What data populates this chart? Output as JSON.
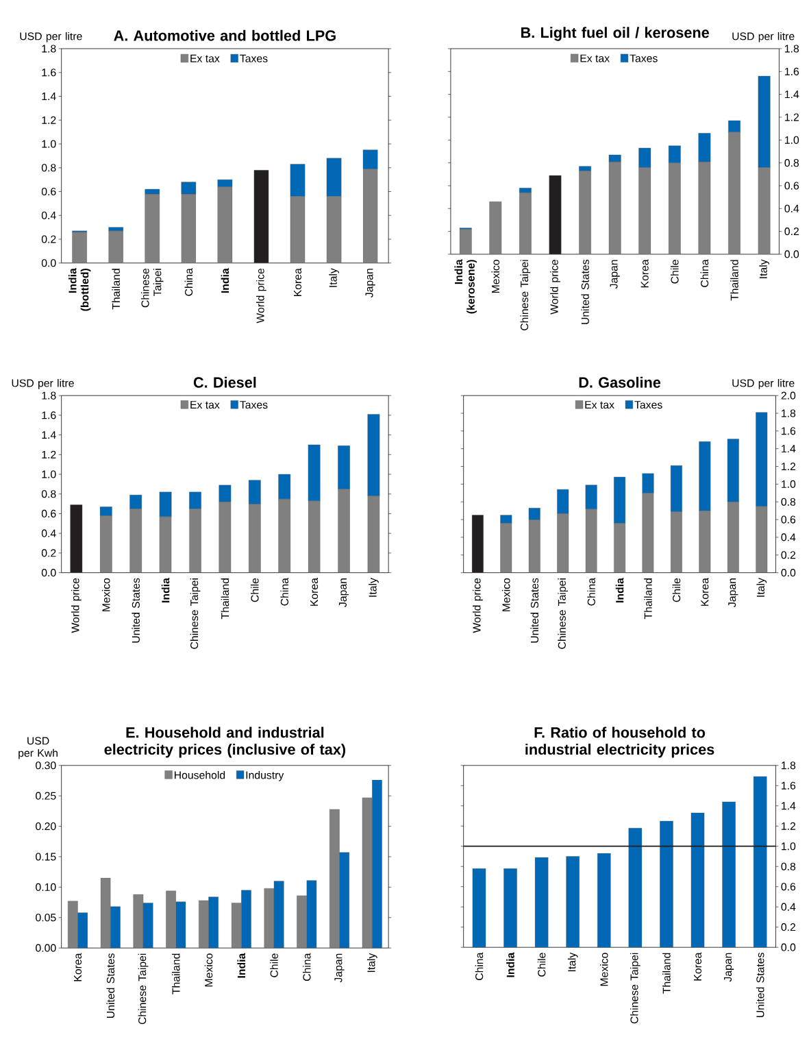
{
  "chart_data": [
    {
      "type": "bar",
      "stacked": true,
      "title": "A. Automotive and bottled LPG",
      "ylabel": "USD per litre",
      "legend": "top",
      "categories": [
        "**India (bottled)**",
        "Thailand",
        "Chinese Taipei",
        "China",
        "**India**",
        "World price",
        "Korea",
        "Italy",
        "Japan"
      ],
      "series": [
        {
          "name": "Ex tax",
          "color": "#808080",
          "colors": [
            "#808080",
            "#808080",
            "#808080",
            "#808080",
            "#808080",
            "#231f20",
            "#808080",
            "#808080",
            "#808080"
          ],
          "values": [
            0.26,
            0.27,
            0.58,
            0.58,
            0.64,
            0.78,
            0.56,
            0.56,
            0.79
          ]
        },
        {
          "name": "Taxes",
          "color": "#0068b4",
          "values": [
            0.01,
            0.03,
            0.04,
            0.1,
            0.06,
            null,
            0.27,
            0.32,
            0.16
          ]
        }
      ],
      "ylim": [
        0,
        1.8
      ],
      "yticks": [
        {
          "value": 0,
          "label": "0.0"
        },
        0.2,
        0.4,
        0.6,
        0.8,
        {
          "value": 1,
          "label": "1.0"
        },
        1.2,
        1.4,
        1.6,
        1.8
      ]
    },
    {
      "type": "bar",
      "stacked": true,
      "title": "B. Light fuel oil / kerosene",
      "y2label": "USD per litre",
      "legend": "top",
      "categories": [
        "**India (kerosene)**",
        "Mexico",
        "Chinese Taipei",
        "World price",
        "United States",
        "Japan",
        "Korea",
        "Chile",
        "China",
        "Thailand",
        "Italy"
      ],
      "series": [
        {
          "name": "Ex tax",
          "axis": "y2",
          "color": "#808080",
          "colors": [
            "#808080",
            "#808080",
            "#808080",
            "#231f20",
            "#808080",
            "#808080",
            "#808080",
            "#808080",
            "#808080",
            "#808080",
            "#808080"
          ],
          "values": [
            0.22,
            0.46,
            0.54,
            0.69,
            0.73,
            0.81,
            0.76,
            0.8,
            0.81,
            1.07,
            0.76
          ]
        },
        {
          "name": "Taxes",
          "axis": "y2",
          "color": "#0068b4",
          "values": [
            0.01,
            null,
            0.04,
            null,
            0.04,
            0.06,
            0.17,
            0.15,
            0.25,
            0.1,
            0.8
          ]
        }
      ],
      "y2lim": [
        0,
        1.8
      ],
      "y2ticks": [
        {
          "value": 0,
          "label": "0.0"
        },
        0.2,
        0.4,
        0.6,
        0.8,
        {
          "value": 1,
          "label": "1.0"
        },
        1.2,
        1.4,
        1.6,
        1.8
      ]
    },
    {
      "type": "bar",
      "stacked": true,
      "title": "C. Diesel",
      "ylabel": "USD per litre",
      "legend": "top",
      "categories": [
        "World price",
        "Mexico",
        "United States",
        "**India**",
        "Chinese Taipei",
        "Thailand",
        "Chile",
        "China",
        "Korea",
        "Japan",
        "Italy"
      ],
      "series": [
        {
          "name": "Ex tax",
          "color": "#808080",
          "colors": [
            "#231f20",
            "#808080",
            "#808080",
            "#808080",
            "#808080",
            "#808080",
            "#808080",
            "#808080",
            "#808080",
            "#808080",
            "#808080"
          ],
          "values": [
            0.69,
            0.58,
            0.65,
            0.57,
            0.65,
            0.72,
            0.7,
            0.75,
            0.73,
            0.85,
            0.78
          ]
        },
        {
          "name": "Taxes",
          "color": "#0068b4",
          "values": [
            null,
            0.09,
            0.14,
            0.25,
            0.17,
            0.17,
            0.24,
            0.25,
            0.57,
            0.44,
            0.83
          ]
        }
      ],
      "ylim": [
        0,
        1.8
      ],
      "yticks": [
        {
          "value": 0,
          "label": "0.0"
        },
        0.2,
        0.4,
        0.6,
        0.8,
        {
          "value": 1,
          "label": "1.0"
        },
        1.2,
        1.4,
        1.6,
        1.8
      ]
    },
    {
      "type": "bar",
      "stacked": true,
      "title": "D. Gasoline",
      "y2label": "USD per litre",
      "legend": "top",
      "categories": [
        "World price",
        "Mexico",
        "United States",
        "Chinese Taipei",
        "China",
        "**India**",
        "Thailand",
        "Chile",
        "Korea",
        "Japan",
        "Italy"
      ],
      "series": [
        {
          "name": "Ex tax",
          "axis": "y2",
          "color": "#808080",
          "colors": [
            "#231f20",
            "#808080",
            "#808080",
            "#808080",
            "#808080",
            "#808080",
            "#808080",
            "#808080",
            "#808080",
            "#808080",
            "#808080"
          ],
          "values": [
            0.65,
            0.56,
            0.6,
            0.67,
            0.72,
            0.56,
            0.9,
            0.69,
            0.7,
            0.8,
            0.75
          ]
        },
        {
          "name": "Taxes",
          "axis": "y2",
          "color": "#0068b4",
          "values": [
            null,
            0.09,
            0.13,
            0.27,
            0.27,
            0.52,
            0.22,
            0.52,
            0.78,
            0.71,
            1.06
          ]
        }
      ],
      "y2lim": [
        0,
        2.0
      ],
      "y2ticks": [
        {
          "value": 0,
          "label": "0.0"
        },
        0.2,
        0.4,
        0.6,
        0.8,
        {
          "value": 1,
          "label": "1.0"
        },
        1.2,
        1.4,
        1.6,
        1.8,
        {
          "value": 2,
          "label": "2.0"
        }
      ]
    },
    {
      "type": "bar",
      "title": "E. Household and industrial electricity prices (inclusive of tax)",
      "ylabel": "USD per Kwh",
      "legend": "top",
      "categories": [
        "Korea",
        "United States",
        "Chinese Taipei",
        "Thailand",
        "Mexico",
        "**India**",
        "Chile",
        "China",
        "Japan",
        "Italy"
      ],
      "series": [
        {
          "name": "Household",
          "color": "#808080",
          "values": [
            0.077,
            0.115,
            0.088,
            0.094,
            0.078,
            0.074,
            0.098,
            0.086,
            0.228,
            0.247
          ]
        },
        {
          "name": "Industry",
          "color": "#0068b4",
          "values": [
            0.058,
            0.068,
            0.074,
            0.076,
            0.084,
            0.095,
            0.11,
            0.111,
            0.157,
            0.276
          ]
        }
      ],
      "ylim": [
        0,
        0.3
      ],
      "yticks": [
        {
          "value": 0,
          "label": "0.00"
        },
        {
          "value": 0.05,
          "label": "0.05"
        },
        {
          "value": 0.1,
          "label": "0.10"
        },
        {
          "value": 0.15,
          "label": "0.15"
        },
        {
          "value": 0.2,
          "label": "0.20"
        },
        {
          "value": 0.25,
          "label": "0.25"
        },
        {
          "value": 0.3,
          "label": "0.30"
        }
      ]
    },
    {
      "type": "bar",
      "title": "F. Ratio of household to industrial electricity prices",
      "categories": [
        "China",
        "**India**",
        "Chile",
        "Italy",
        "Mexico",
        "Chinese Taipei",
        "Thailand",
        "Korea",
        "Japan",
        "United States"
      ],
      "series": [
        {
          "axis": "y2",
          "color": "#0068b4",
          "values": [
            0.78,
            0.78,
            0.89,
            0.9,
            0.93,
            1.18,
            1.25,
            1.33,
            1.44,
            1.69
          ]
        }
      ],
      "ref_lines": [
        {
          "axis": "y2",
          "value": 1.0,
          "color": "#231f20"
        }
      ],
      "y2lim": [
        0,
        1.8
      ],
      "y2ticks": [
        {
          "value": 0,
          "label": "0.0"
        },
        0.2,
        0.4,
        0.6,
        0.8,
        {
          "value": 1,
          "label": "1.0"
        },
        1.2,
        1.4,
        1.6,
        1.8
      ]
    }
  ]
}
